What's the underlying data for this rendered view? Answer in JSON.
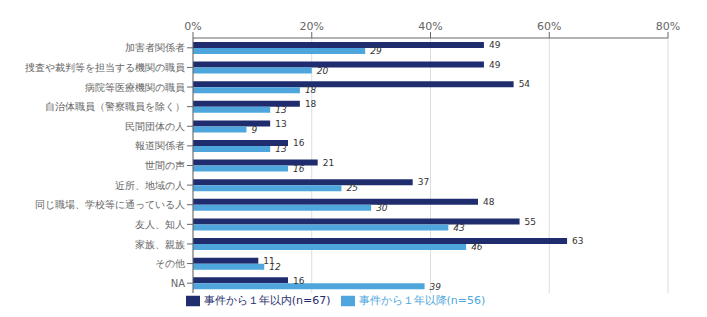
{
  "chart_data": {
    "type": "bar",
    "orientation": "horizontal",
    "categories": [
      "NA",
      "その他",
      "家族、親族",
      "友人、知人",
      "同じ職場、学校等に通っている人",
      "近所、地域の人",
      "世間の声",
      "報道関係者",
      "民間団体の人",
      "自治体職員（警察職員を除く）",
      "病院等医療機関の職員",
      "捜査や裁判等を担当する機関の職員",
      "加害者関係者"
    ],
    "series": [
      {
        "name": "事件から１年以内(n=67)",
        "color": "#1F2D6E",
        "values": [
          16,
          11,
          63,
          55,
          48,
          37,
          21,
          16,
          13,
          18,
          54,
          49,
          49
        ]
      },
      {
        "name": "事件から１年以降(n=56)",
        "color": "#4EA6DC",
        "values": [
          39,
          12,
          46,
          43,
          30,
          25,
          16,
          13,
          9,
          13,
          18,
          20,
          29
        ]
      }
    ],
    "xlim": [
      0,
      80
    ],
    "xticks": [
      {
        "value": 0,
        "label": "0%"
      },
      {
        "value": 20,
        "label": "20%"
      },
      {
        "value": 40,
        "label": "40%"
      },
      {
        "value": 60,
        "label": "60%"
      },
      {
        "value": 80,
        "label": "80%"
      }
    ],
    "grid": true,
    "legend": "bottom",
    "data_labels": true
  }
}
